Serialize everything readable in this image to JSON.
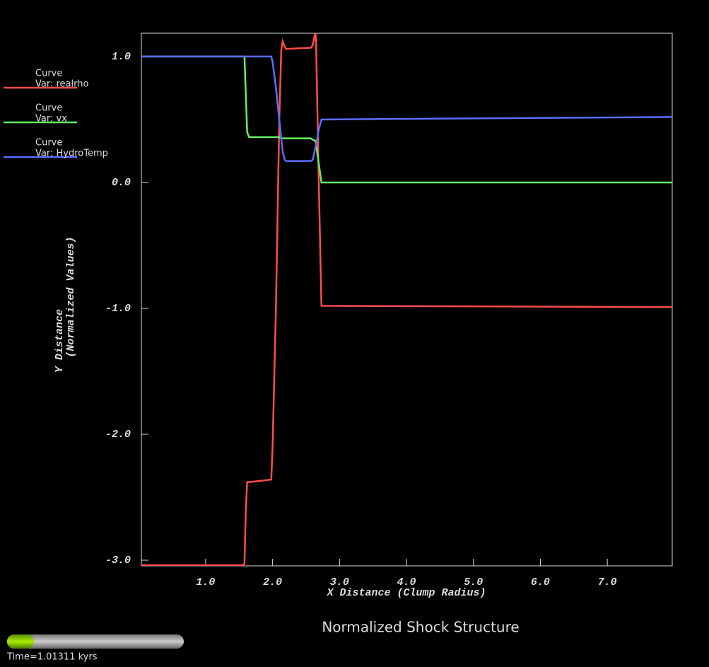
{
  "chart_data": {
    "type": "line",
    "title": "Normalized Shock Structure",
    "x_label": "X Distance (Clump Radius)",
    "y_label": [
      "Y Distance",
      "(Normalized Values)"
    ],
    "time_label": "Time=1.01311 kyrs",
    "x": [
      0.04,
      1.55,
      1.58,
      1.6,
      1.62,
      1.65,
      1.98,
      2.0,
      2.05,
      2.1,
      2.13,
      2.15,
      2.18,
      2.2,
      2.57,
      2.6,
      2.64,
      2.65,
      2.69,
      2.73,
      7.97
    ],
    "series": [
      {
        "label": "Curve",
        "name": "Var: realrho",
        "color": "#ff4c4c",
        "values": [
          -3.04,
          -3.04,
          -3.03,
          -2.6,
          -2.38,
          -2.38,
          -2.36,
          -2.1,
          -1.0,
          0.5,
          1.05,
          1.12,
          1.08,
          1.06,
          1.07,
          1.09,
          1.2,
          1.1,
          0.0,
          -0.98,
          -0.99
        ]
      },
      {
        "label": "Curve",
        "name": "Var: vx",
        "color": "#66ee66",
        "values": [
          1.0,
          1.0,
          1.0,
          0.7,
          0.4,
          0.36,
          0.36,
          0.36,
          0.36,
          0.36,
          0.35,
          0.35,
          0.35,
          0.35,
          0.35,
          0.34,
          0.33,
          0.3,
          0.15,
          0.0,
          0.0
        ]
      },
      {
        "label": "Curve",
        "name": "Var: HydroTemp",
        "color": "#5c6cff",
        "values": [
          1.0,
          1.0,
          1.0,
          1.0,
          1.0,
          1.0,
          1.0,
          0.96,
          0.75,
          0.5,
          0.35,
          0.25,
          0.18,
          0.17,
          0.17,
          0.18,
          0.28,
          0.3,
          0.42,
          0.5,
          0.52
        ]
      }
    ],
    "xlim": [
      0.04,
      7.97
    ],
    "ylim": [
      -3.045,
      1.185
    ],
    "xticks": [
      {
        "value": 1,
        "label": "1.0"
      },
      {
        "value": 2,
        "label": "2.0"
      },
      {
        "value": 3,
        "label": "3.0"
      },
      {
        "value": 4,
        "label": "4.0"
      },
      {
        "value": 5,
        "label": "5.0"
      },
      {
        "value": 6,
        "label": "6.0"
      },
      {
        "value": 7,
        "label": "7.0"
      }
    ],
    "yticks": [
      {
        "value": 1,
        "label": "1.0"
      },
      {
        "value": 0,
        "label": "0.0"
      },
      {
        "value": -1,
        "label": "-1.0"
      },
      {
        "value": -2,
        "label": "-2.0"
      },
      {
        "value": -3,
        "label": "-3.0"
      }
    ]
  }
}
